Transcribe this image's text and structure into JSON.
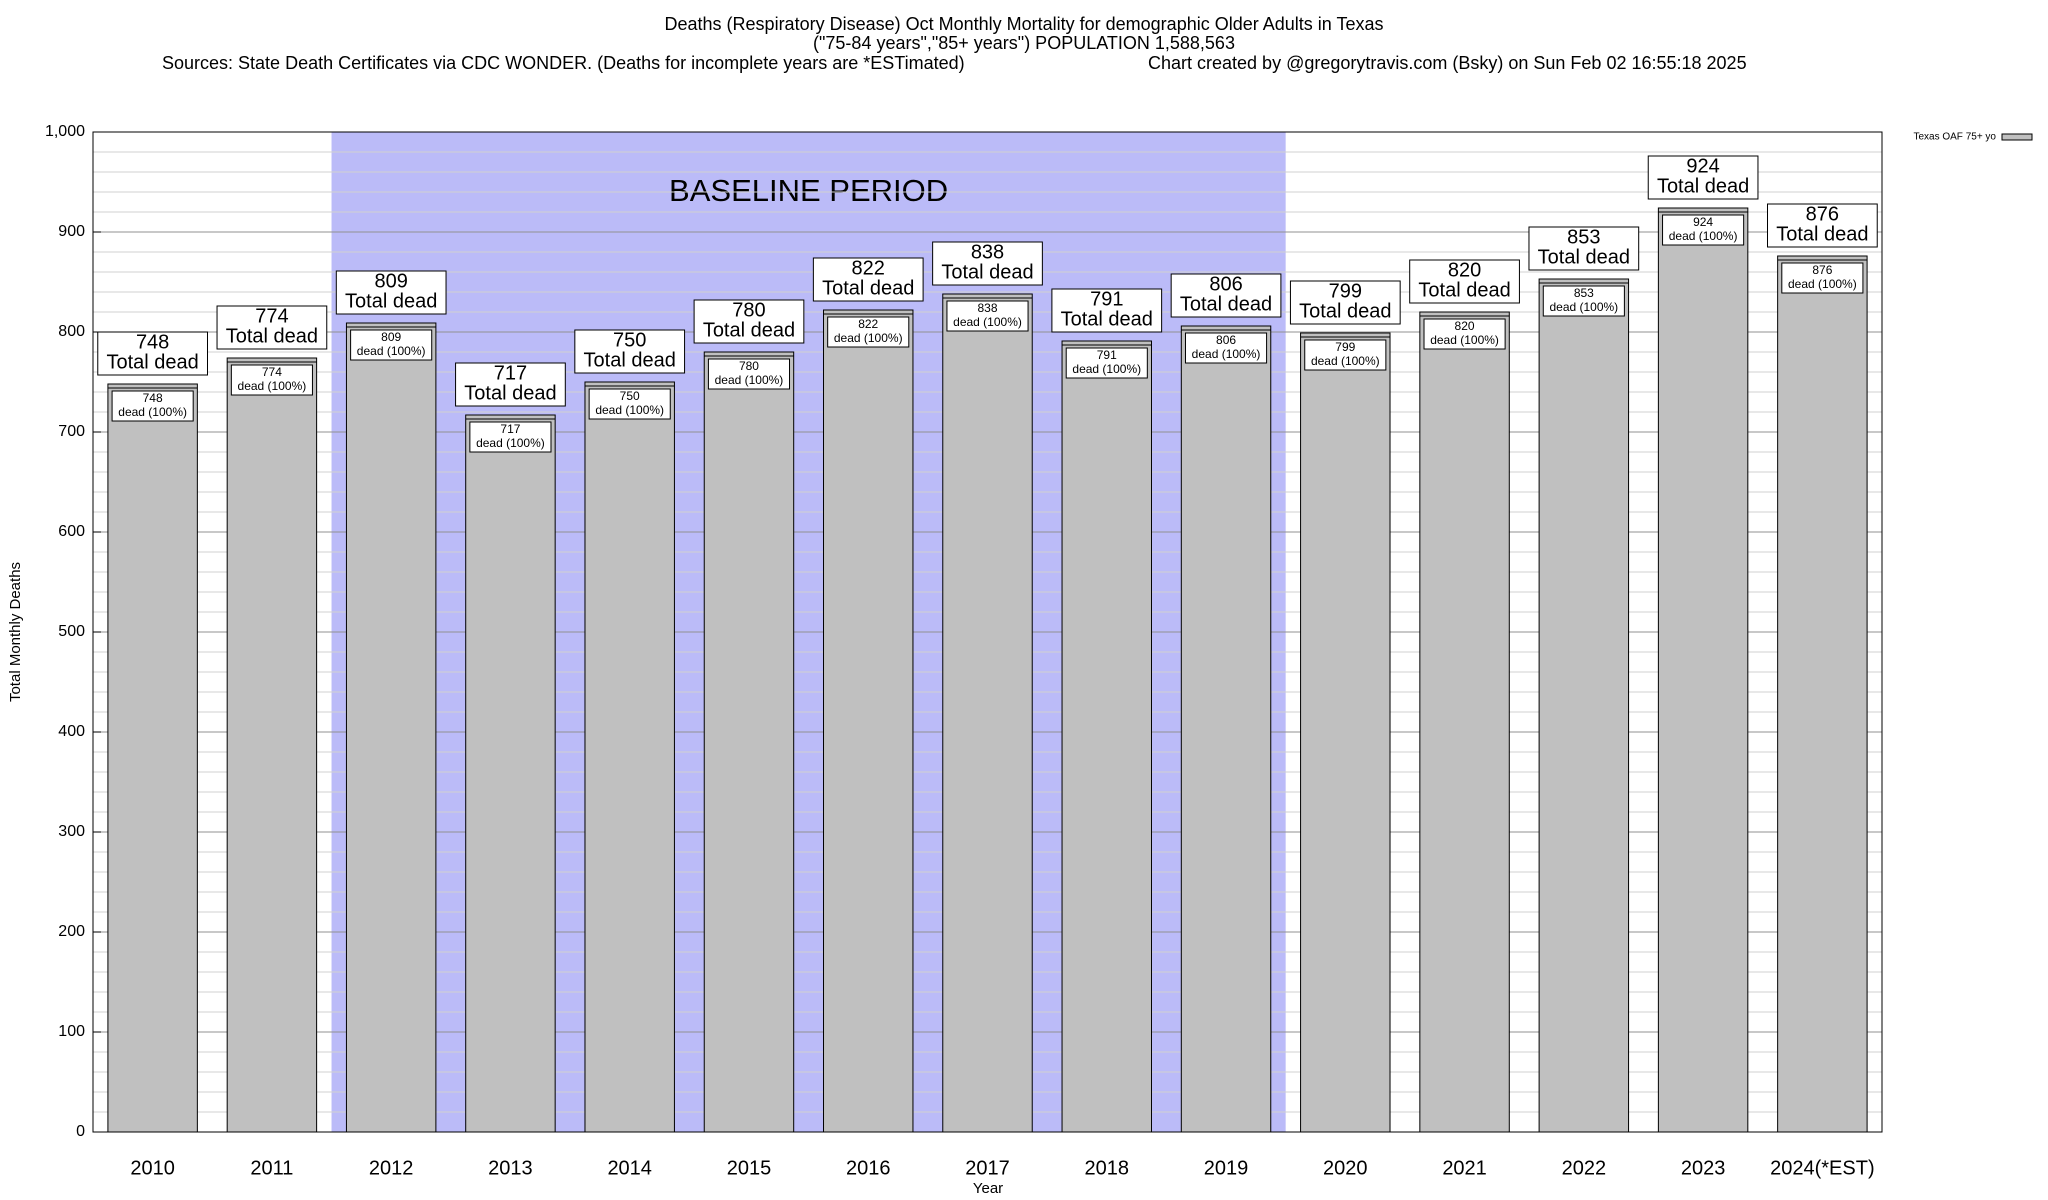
{
  "chart_data": {
    "type": "bar",
    "title": "Deaths (Respiratory Disease) Oct Monthly Mortality for demographic Older Adults in Texas",
    "subtitle": "(\"75-84 years\",\"85+ years\") POPULATION 1,588,563",
    "source": "Sources: State Death Certificates via CDC WONDER. (Deaths for incomplete years are *ESTimated)",
    "credit": "Chart created by @gregorytravis.com (Bsky) on Sun Feb 02 16:55:18 2025",
    "x_label": "Year",
    "y_label": "Total Monthly Deaths",
    "categories": [
      "2010",
      "2011",
      "2012",
      "2013",
      "2014",
      "2015",
      "2016",
      "2017",
      "2018",
      "2019",
      "2020",
      "2021",
      "2022",
      "2023",
      "2024(*EST)"
    ],
    "series": [
      {
        "name": "Texas OAF 75+ yo",
        "color": "#c0c0c0",
        "values": [
          748,
          774,
          809,
          717,
          750,
          780,
          822,
          838,
          791,
          806,
          799,
          820,
          853,
          924,
          876
        ]
      }
    ],
    "total_label": "Total dead",
    "share_label": "dead (100%)",
    "baseline": {
      "label": "BASELINE PERIOD",
      "from": "2012",
      "to": "2019",
      "color": "#bbbbf8"
    },
    "ylim": [
      0,
      1000
    ],
    "yticks": [
      0,
      100,
      200,
      300,
      400,
      500,
      600,
      700,
      800,
      900,
      {
        "value": 1000,
        "label": "1,000"
      }
    ],
    "yminorticks": [
      20,
      40,
      60,
      80,
      120,
      140,
      160,
      180,
      220,
      240,
      260,
      280,
      320,
      340,
      360,
      380,
      420,
      440,
      460,
      480,
      520,
      540,
      560,
      580,
      620,
      640,
      660,
      680,
      720,
      740,
      760,
      780,
      820,
      840,
      860,
      880,
      920,
      940,
      960,
      980
    ],
    "grid": true,
    "legend": "top-right"
  }
}
